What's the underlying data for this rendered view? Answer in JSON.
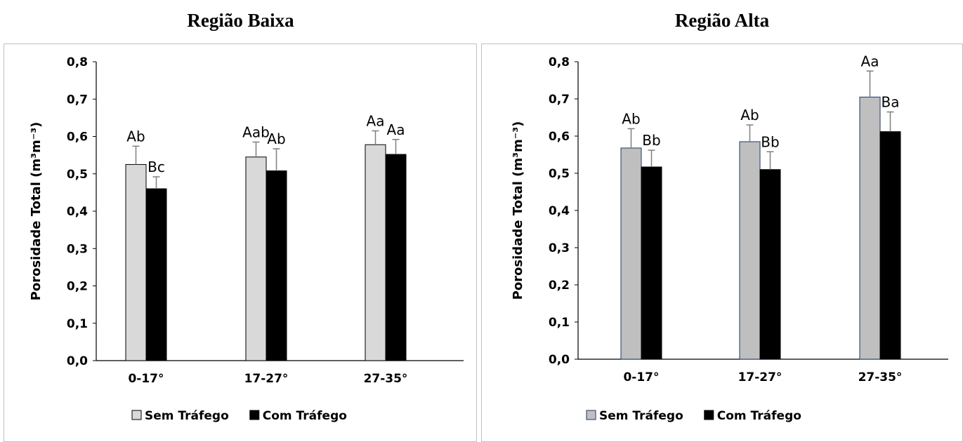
{
  "chart_data": [
    {
      "type": "bar",
      "title": "Região Baixa",
      "ylabel": "Porosidade Total (m³m⁻³)",
      "ylim": [
        0,
        0.8
      ],
      "yticks": [
        "0,0",
        "0,1",
        "0,2",
        "0,3",
        "0,4",
        "0,5",
        "0,6",
        "0,7",
        "0,8"
      ],
      "categories": [
        "0-17°",
        "17-27°",
        "27-35°"
      ],
      "series": [
        {
          "name": "Sem Tráfego",
          "color": "#d9d9d9",
          "stroke": "#000000",
          "values": [
            0.525,
            0.545,
            0.578
          ],
          "errors": [
            0.049,
            0.04,
            0.037
          ],
          "labels": [
            "Ab",
            "Aab",
            "Aa"
          ]
        },
        {
          "name": "Com Tráfego",
          "color": "#000000",
          "stroke": "#000000",
          "values": [
            0.46,
            0.508,
            0.552
          ],
          "errors": [
            0.032,
            0.059,
            0.04
          ],
          "labels": [
            "Bc",
            "Ab",
            "Aa"
          ]
        }
      ],
      "legend": "bottom",
      "grid": false
    },
    {
      "type": "bar",
      "title": "Região Alta",
      "ylabel": "Porosidade Total (m³m⁻³)",
      "ylim": [
        0,
        0.8
      ],
      "yticks": [
        "0,0",
        "0,1",
        "0,2",
        "0,3",
        "0,4",
        "0,5",
        "0,6",
        "0,7",
        "0,8"
      ],
      "categories": [
        "0-17°",
        "17-27°",
        "27-35°"
      ],
      "series": [
        {
          "name": "Sem Tráfego",
          "color": "#bfbfbf",
          "stroke": "#1f3864",
          "values": [
            0.568,
            0.585,
            0.705
          ],
          "errors": [
            0.052,
            0.045,
            0.07
          ],
          "labels": [
            "Ab",
            "Ab",
            "Aa"
          ]
        },
        {
          "name": "Com Tráfego",
          "color": "#000000",
          "stroke": "#000000",
          "values": [
            0.517,
            0.51,
            0.612
          ],
          "errors": [
            0.045,
            0.048,
            0.053
          ],
          "labels": [
            "Bb",
            "Bb",
            "Ba"
          ]
        }
      ],
      "legend": "bottom",
      "grid": false
    }
  ]
}
